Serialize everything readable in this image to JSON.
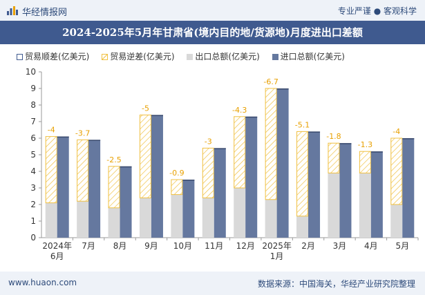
{
  "header": {
    "brand": "华经情报网",
    "tagline": "专业严谨 ● 客观科学"
  },
  "footer": {
    "site": "www.huaon.com",
    "source": "数据来源：中国海关，华经产业研究院整理"
  },
  "colors": {
    "surplus": "#3f5a8f",
    "deficit_hatch": "#f0c040",
    "export": "#d9d9d9",
    "import": "#65789f",
    "label": "#e8a000"
  },
  "chart_data": {
    "type": "bar",
    "title": "2024-2025年5月年甘肃省(境内目的地/货源地)月度进出口差额",
    "categories": [
      "2024年6月",
      "7月",
      "8月",
      "9月",
      "10月",
      "11月",
      "12月",
      "2025年1月",
      "2月",
      "3月",
      "4月",
      "5月"
    ],
    "series": [
      {
        "name": "贸易顺差(亿美元)",
        "values": [
          null,
          null,
          null,
          null,
          null,
          null,
          null,
          null,
          null,
          null,
          null,
          null
        ]
      },
      {
        "name": "贸易逆差(亿美元)",
        "values": [
          -4,
          -3.7,
          -2.5,
          -5,
          -0.9,
          -3,
          -4.3,
          -6.7,
          -5.1,
          -1.8,
          -1.3,
          -4
        ]
      },
      {
        "name": "出口总额(亿美元)",
        "values": [
          2.1,
          2.2,
          1.8,
          2.4,
          2.6,
          2.4,
          3.0,
          2.3,
          1.3,
          3.9,
          3.9,
          2.0
        ]
      },
      {
        "name": "进口总额(亿美元)",
        "values": [
          6.1,
          5.9,
          4.3,
          7.4,
          3.5,
          5.4,
          7.3,
          9.0,
          6.4,
          5.7,
          5.2,
          6.0
        ]
      }
    ],
    "data_labels": [
      "-4",
      "-3.7",
      "-2.5",
      "-5",
      "-0.9",
      "-3",
      "-4.3",
      "-6.7",
      "-5.1",
      "-1.8",
      "-1.3",
      "-4"
    ],
    "ylim": [
      0,
      10
    ],
    "yticks": [
      0,
      1,
      2,
      3,
      4,
      5,
      6,
      7,
      8,
      9,
      10
    ],
    "grid": false,
    "legend_position": "top-left"
  }
}
